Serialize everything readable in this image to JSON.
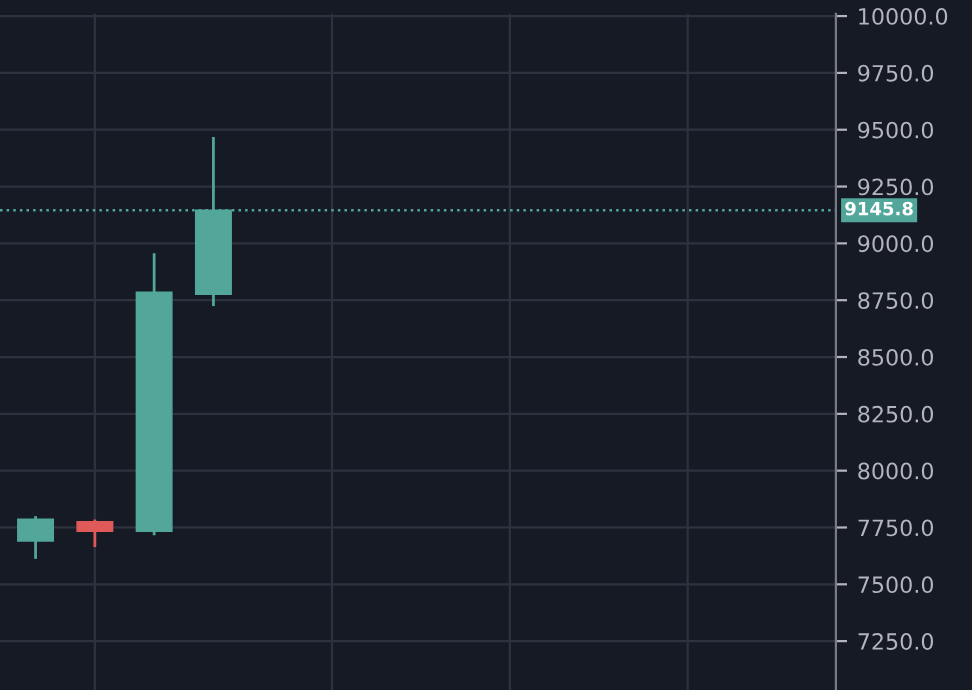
{
  "chart_data": {
    "type": "candlestick",
    "categories": [
      null,
      null,
      null,
      null,
      null,
      null,
      null,
      null,
      null,
      null,
      null,
      null,
      null,
      null
    ],
    "ohlc": [
      [
        7690,
        7800,
        7612,
        7787
      ],
      [
        7776,
        7785,
        7664,
        7733
      ],
      [
        7733,
        8957,
        7716,
        8785
      ],
      [
        8776,
        9468,
        8724,
        9145.8
      ],
      null,
      null,
      null,
      null,
      null,
      null,
      null,
      null,
      null,
      null
    ],
    "colors": [
      "#53a69a",
      "#e05a5a",
      "#53a69a",
      "#53a69a",
      null,
      null,
      null,
      null,
      null,
      null,
      null,
      null,
      null,
      null
    ],
    "ylim": [
      7035,
      10010
    ],
    "yticks": [
      {
        "value": 7250,
        "label": "7250.0"
      },
      {
        "value": 7500,
        "label": "7500.0"
      },
      {
        "value": 7750,
        "label": "7750.0"
      },
      {
        "value": 8000,
        "label": "8000.0"
      },
      {
        "value": 8250,
        "label": "8250.0"
      },
      {
        "value": 8500,
        "label": "8500.0"
      },
      {
        "value": 8750,
        "label": "8750.0"
      },
      {
        "value": 9000,
        "label": "9000.0"
      },
      {
        "value": 9250,
        "label": "9250.0"
      },
      {
        "value": 9500,
        "label": "9500.0"
      },
      {
        "value": 9750,
        "label": "9750.0"
      },
      {
        "value": 10000,
        "label": "10000.0"
      }
    ],
    "ref_lines": [
      {
        "axis": "y",
        "value": 9145.8,
        "label": "9145.8",
        "color": "#53a69a",
        "line_style": "dotted"
      }
    ],
    "tick_labels": "y",
    "grid": true
  }
}
